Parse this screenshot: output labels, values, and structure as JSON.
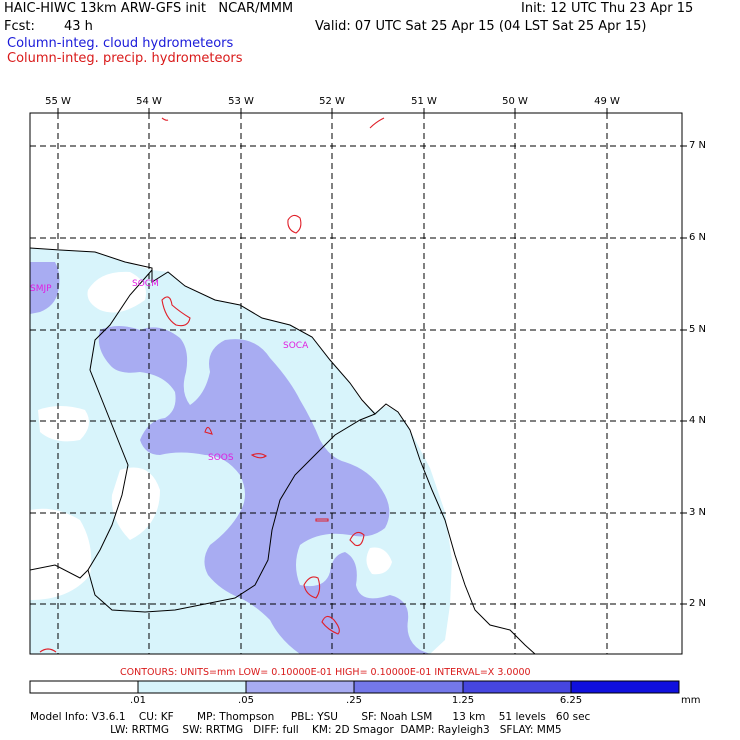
{
  "header": {
    "title": "HAIC-HIWC 13km ARW-GFS init   NCAR/MMM",
    "init": "Init: 12 UTC Thu 23 Apr 15",
    "fcst_label": "Fcst:",
    "fcst_value": "43 h",
    "valid": "Valid: 07 UTC Sat 25 Apr 15 (04 LST Sat 25 Apr 15)",
    "field_cloud": "Column-integ. cloud hydrometeors",
    "field_precip": "Column-integ. precip. hydrometeors"
  },
  "map": {
    "lon_labels": [
      "55 W",
      "54 W",
      "53 W",
      "52 W",
      "51 W",
      "50 W",
      "49 W"
    ],
    "lat_labels": [
      "7 N",
      "6 N",
      "5 N",
      "4 N",
      "3 N",
      "2 N"
    ],
    "stations": [
      "SMJP",
      "SOCM",
      "SOCA",
      "SOOS"
    ]
  },
  "contour_note": "CONTOURS:  UNITS=mm   LOW= 0.10000E-01   HIGH= 0.10000E-01   INTERVAL=X   3.0000",
  "colorbar": {
    "labels": [
      ".01",
      ".05",
      ".25",
      "1.25",
      "6.25"
    ],
    "units": "mm",
    "colors": [
      "#ffffff",
      "#d8f4fb",
      "#a8acf2",
      "#7478ea",
      "#4646e0",
      "#1010dd"
    ]
  },
  "model_info": {
    "line1": "Model Info: V3.6.1    CU: KF       MP: Thompson     PBL: YSU       SF: Noah LSM      13 km    51 levels   60 sec",
    "line2": "                        LW: RRTMG    SW: RRTMG   DIFF: full    KM: 2D Smagor  DAMP: Rayleigh3   SFLAY: MM5"
  }
}
